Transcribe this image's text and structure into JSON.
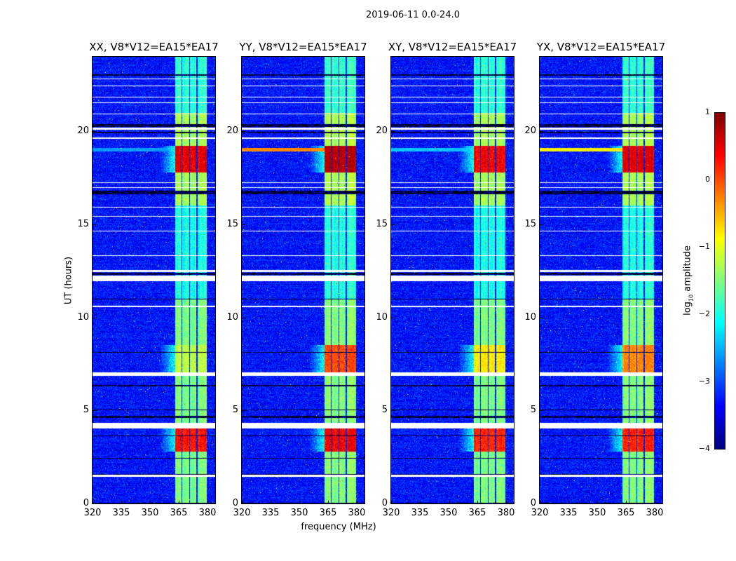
{
  "chart_data": {
    "type": "heatmap",
    "suptitle": "2019-06-11 0.0-24.0",
    "xlabel": "frequency (MHz)",
    "ylabel": "UT (hours)",
    "xlim": [
      320,
      384
    ],
    "ylim": [
      0,
      24
    ],
    "xticks": [
      "320",
      "335",
      "350",
      "365",
      "380"
    ],
    "xtick_values": [
      320,
      335,
      350,
      365,
      380
    ],
    "yticks": [
      "0",
      "5",
      "10",
      "15",
      "20"
    ],
    "ytick_values": [
      0,
      5,
      10,
      15,
      20
    ],
    "colorbar": {
      "colormap": "jet",
      "range": [
        -4,
        1
      ],
      "ticks": [
        "1",
        "0",
        "−1",
        "−2",
        "−3",
        "−4"
      ],
      "tick_values": [
        1,
        0,
        -1,
        -2,
        -3,
        -4
      ],
      "label_prefix": "log",
      "label_sub": "10",
      "label_suffix": " amplitude"
    },
    "panels": [
      {
        "title": "XX, V8*V12=EA15*EA17",
        "hot_levels": [
          0.3,
          -1.2,
          0.5
        ],
        "rfi_stripe": -2.6
      },
      {
        "title": "YY, V8*V12=EA15*EA17",
        "hot_levels": [
          0.4,
          0.0,
          0.7
        ],
        "rfi_stripe": -0.3
      },
      {
        "title": "XY, V8*V12=EA15*EA17",
        "hot_levels": [
          0.2,
          -0.8,
          0.4
        ],
        "rfi_stripe": -2.4
      },
      {
        "title": "YX, V8*V12=EA15*EA17",
        "hot_levels": [
          0.2,
          -0.3,
          0.5
        ],
        "rfi_stripe": -0.8
      }
    ],
    "background_level": -3.3,
    "band_mhz": [
      363,
      379.5
    ],
    "band_gaps_mhz": [
      [
        366.3,
        366.9
      ],
      [
        370.3,
        370.9
      ],
      [
        374.3,
        374.9
      ]
    ],
    "band_levels": [
      {
        "hours": [
          0,
          11
        ],
        "level": -1.5
      },
      {
        "hours": [
          11,
          16
        ],
        "level": -2.0
      },
      {
        "hours": [
          16,
          21
        ],
        "level": -1.3
      },
      {
        "hours": [
          21,
          24
        ],
        "level": -1.9
      }
    ],
    "hot_intervals_hours": [
      [
        2.8,
        4.05
      ],
      [
        7.0,
        8.5
      ],
      [
        17.8,
        19.2
      ]
    ],
    "flagged_white_hours": [
      [
        1.45,
        1.55
      ],
      [
        4.05,
        4.35
      ],
      [
        6.85,
        7.05
      ],
      [
        10.55,
        10.62
      ],
      [
        11.95,
        12.25
      ],
      [
        12.45,
        12.55
      ],
      [
        13.3,
        13.35
      ],
      [
        14.6,
        14.65
      ],
      [
        15.4,
        15.46
      ],
      [
        15.9,
        15.95
      ],
      [
        16.95,
        17.0
      ],
      [
        17.2,
        17.25
      ],
      [
        19.6,
        19.65
      ],
      [
        20.1,
        20.2
      ],
      [
        20.9,
        20.95
      ],
      [
        21.5,
        21.55
      ],
      [
        21.8,
        21.85
      ],
      [
        22.4,
        22.46
      ],
      [
        22.8,
        22.85
      ]
    ],
    "flagged_black_hours": [
      [
        0,
        0.05
      ],
      [
        1.55,
        1.6
      ],
      [
        2.4,
        2.45
      ],
      [
        3.6,
        3.65
      ],
      [
        4.6,
        4.7
      ],
      [
        5.0,
        5.06
      ],
      [
        6.3,
        6.36
      ],
      [
        8.1,
        8.15
      ],
      [
        10.95,
        11.02
      ],
      [
        12.3,
        12.4
      ],
      [
        16.6,
        16.8
      ],
      [
        19.9,
        19.96
      ],
      [
        20.25,
        20.4
      ],
      [
        23.0,
        23.05
      ]
    ]
  }
}
